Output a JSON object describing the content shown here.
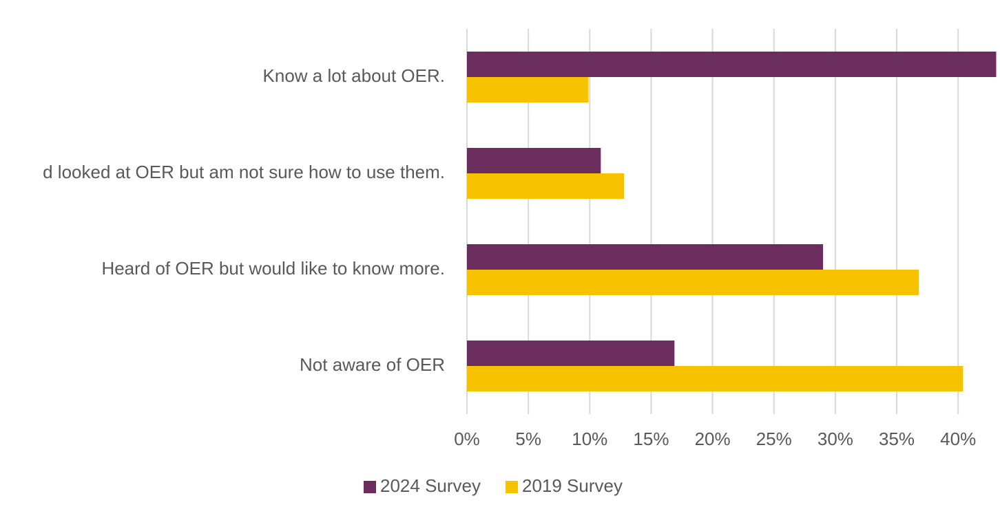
{
  "chart_data": {
    "type": "hbar",
    "categories": [
      "Know a lot about OER.",
      "d looked at OER but am not sure how to use them.",
      "Heard of OER but would like to know more.",
      "Not aware of OER"
    ],
    "series": [
      {
        "name": "2024 Survey",
        "color": "#6b2d5e",
        "values": [
          43.1,
          10.9,
          29,
          16.9
        ]
      },
      {
        "name": "2019 Survey",
        "color": "#f7c300",
        "values": [
          9.9,
          12.8,
          36.8,
          40.4
        ]
      }
    ],
    "xlim": [
      0,
      45
    ],
    "xticks": [
      {
        "value": 0,
        "label": "0%"
      },
      {
        "value": 5,
        "label": "5%"
      },
      {
        "value": 10,
        "label": "10%"
      },
      {
        "value": 15,
        "label": "15%"
      },
      {
        "value": 20,
        "label": "20%"
      },
      {
        "value": 25,
        "label": "25%"
      },
      {
        "value": 30,
        "label": "30%"
      },
      {
        "value": 35,
        "label": "35%"
      },
      {
        "value": 40,
        "label": "40%"
      }
    ],
    "grid": true,
    "legend": "bottom"
  }
}
